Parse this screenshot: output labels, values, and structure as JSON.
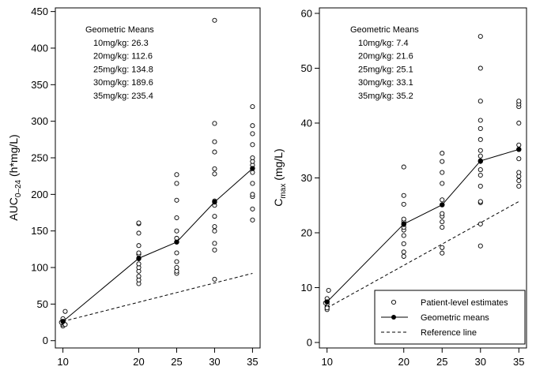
{
  "chart_data": [
    {
      "type": "scatter",
      "ylabel": "AUC",
      "ylabel_sub": "0–24",
      "ylabel_suffix": " (h*mg/L)",
      "xlim": [
        9,
        36
      ],
      "ylim": [
        -10,
        455
      ],
      "x_ticks": [
        10,
        20,
        25,
        30,
        35
      ],
      "x_tick_labels": [
        "10",
        "20",
        "25",
        "30",
        "35"
      ],
      "y_ticks": [
        0,
        50,
        100,
        150,
        200,
        250,
        300,
        350,
        400,
        450
      ],
      "y_tick_labels": [
        "0",
        "50",
        "100",
        "150",
        "200",
        "250",
        "300",
        "350",
        "400",
        "450"
      ],
      "gm_title": "Geometric Means",
      "gm_lines": [
        "10mg/kg: 26.3",
        "20mg/kg: 112.6",
        "25mg/kg: 134.8",
        "30mg/kg: 189.6",
        "35mg/kg: 235.4"
      ],
      "patient_points": [
        [
          10,
          20
        ],
        [
          10,
          22
        ],
        [
          10,
          24
        ],
        [
          10,
          26
        ],
        [
          10,
          28
        ],
        [
          10,
          30
        ],
        [
          10.3,
          22
        ],
        [
          10.3,
          40
        ],
        [
          9.8,
          25
        ],
        [
          20,
          78
        ],
        [
          20,
          83
        ],
        [
          20,
          88
        ],
        [
          20,
          95
        ],
        [
          20,
          100
        ],
        [
          20,
          105
        ],
        [
          20,
          112
        ],
        [
          20,
          118
        ],
        [
          20,
          120
        ],
        [
          20,
          130
        ],
        [
          20,
          147
        ],
        [
          20,
          160
        ],
        [
          20,
          161
        ],
        [
          25,
          92
        ],
        [
          25,
          95
        ],
        [
          25,
          100
        ],
        [
          25,
          108
        ],
        [
          25,
          120
        ],
        [
          25,
          135
        ],
        [
          25,
          140
        ],
        [
          25,
          150
        ],
        [
          25,
          168
        ],
        [
          25,
          192
        ],
        [
          25,
          215
        ],
        [
          25,
          227
        ],
        [
          30,
          84
        ],
        [
          30,
          124
        ],
        [
          30,
          133
        ],
        [
          30,
          150
        ],
        [
          30,
          156
        ],
        [
          30,
          170
        ],
        [
          30,
          185
        ],
        [
          30,
          191
        ],
        [
          30,
          228
        ],
        [
          30,
          235
        ],
        [
          30,
          258
        ],
        [
          30,
          272
        ],
        [
          30,
          297
        ],
        [
          30,
          438
        ],
        [
          35,
          165
        ],
        [
          35,
          180
        ],
        [
          35,
          197
        ],
        [
          35,
          200
        ],
        [
          35,
          215
        ],
        [
          35,
          230
        ],
        [
          35,
          240
        ],
        [
          35,
          245
        ],
        [
          35,
          250
        ],
        [
          35,
          268
        ],
        [
          35,
          283
        ],
        [
          35,
          294
        ],
        [
          35,
          320
        ]
      ],
      "geometric_means": {
        "x": [
          10,
          20,
          25,
          30,
          35
        ],
        "y": [
          26.3,
          112.6,
          134.8,
          189.6,
          235.4
        ]
      },
      "reference_line": {
        "x": [
          10,
          35
        ],
        "y": [
          26.3,
          92
        ]
      }
    },
    {
      "type": "scatter",
      "ylabel": "C",
      "ylabel_sub": "max",
      "ylabel_suffix": " (mg/L)",
      "xlim": [
        9,
        36
      ],
      "ylim": [
        -1,
        61
      ],
      "x_ticks": [
        10,
        20,
        25,
        30,
        35
      ],
      "x_tick_labels": [
        "10",
        "20",
        "25",
        "30",
        "35"
      ],
      "y_ticks": [
        0,
        10,
        20,
        30,
        40,
        50,
        60
      ],
      "y_tick_labels": [
        "0",
        "10",
        "20",
        "30",
        "40",
        "50",
        "60"
      ],
      "gm_title": "Geometric Means",
      "gm_lines": [
        "10mg/kg: 7.4",
        "20mg/kg: 21.6",
        "25mg/kg: 25.1",
        "30mg/kg: 33.1",
        "35mg/kg: 35.2"
      ],
      "patient_points": [
        [
          10,
          6.0
        ],
        [
          10,
          6.5
        ],
        [
          10,
          7.0
        ],
        [
          10,
          7.5
        ],
        [
          10,
          8.0
        ],
        [
          10.2,
          9.5
        ],
        [
          10,
          6.3
        ],
        [
          9.8,
          7.2
        ],
        [
          20,
          15.7
        ],
        [
          20,
          16.5
        ],
        [
          20,
          18.0
        ],
        [
          20,
          19.5
        ],
        [
          20,
          20.5
        ],
        [
          20,
          21.0
        ],
        [
          20,
          21.5
        ],
        [
          20,
          22.0
        ],
        [
          20,
          22.5
        ],
        [
          20,
          25.2
        ],
        [
          20,
          26.8
        ],
        [
          20,
          32.0
        ],
        [
          25,
          16.3
        ],
        [
          25,
          17.3
        ],
        [
          25,
          21.0
        ],
        [
          25,
          22.0
        ],
        [
          25,
          23.0
        ],
        [
          25,
          23.5
        ],
        [
          25,
          26.0
        ],
        [
          25,
          29.0
        ],
        [
          25,
          31.0
        ],
        [
          25,
          33.0
        ],
        [
          25,
          34.5
        ],
        [
          30,
          17.6
        ],
        [
          30,
          21.6
        ],
        [
          30,
          25.5
        ],
        [
          30,
          25.7
        ],
        [
          30,
          28.5
        ],
        [
          30,
          30.5
        ],
        [
          30,
          31.5
        ],
        [
          30,
          33.0
        ],
        [
          30,
          34.0
        ],
        [
          30,
          35.0
        ],
        [
          30,
          37.0
        ],
        [
          30,
          39.0
        ],
        [
          30,
          40.5
        ],
        [
          30,
          44.0
        ],
        [
          30,
          50.0
        ],
        [
          30,
          55.8
        ],
        [
          35,
          28.5
        ],
        [
          35,
          29.5
        ],
        [
          35,
          30.3
        ],
        [
          35,
          31.0
        ],
        [
          35,
          33.5
        ],
        [
          35,
          35.2
        ],
        [
          35,
          36.0
        ],
        [
          35,
          40.0
        ],
        [
          35,
          43.0
        ],
        [
          35,
          43.5
        ],
        [
          35,
          44.0
        ]
      ],
      "geometric_means": {
        "x": [
          10,
          20,
          25,
          30,
          35
        ],
        "y": [
          7.4,
          21.6,
          25.1,
          33.1,
          35.2
        ]
      },
      "reference_line": {
        "x": [
          10,
          35
        ],
        "y": [
          6.3,
          25.7
        ]
      },
      "legend": {
        "position": "bottom-right",
        "items": [
          {
            "marker": "open-circle",
            "label": "Patient-level estimates"
          },
          {
            "marker": "line-dot",
            "label": "Geometric means"
          },
          {
            "marker": "dashed",
            "label": "Reference line"
          }
        ]
      }
    }
  ]
}
